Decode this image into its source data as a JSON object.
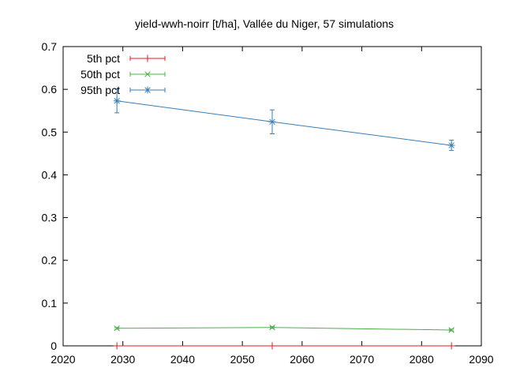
{
  "chart_data": {
    "type": "line",
    "title": "yield-wwh-noirr [t/ha], Vallée du Niger, 57 simulations",
    "xlabel": "",
    "ylabel": "",
    "xlim": [
      2020,
      2090
    ],
    "ylim": [
      0,
      0.7
    ],
    "x_ticks": [
      "2020",
      "2030",
      "2040",
      "2050",
      "2060",
      "2070",
      "2080",
      "2090"
    ],
    "y_ticks": [
      "0",
      "0.1",
      "0.2",
      "0.3",
      "0.4",
      "0.5",
      "0.6",
      "0.7"
    ],
    "grid": false,
    "legend_position": "top-left",
    "x": [
      2029,
      2055,
      2085
    ],
    "series": [
      {
        "name": "5th pct",
        "color": "#e41a1c",
        "marker": "plus",
        "values": [
          0.0,
          0.0,
          0.0
        ],
        "err": [
          0,
          0,
          0
        ]
      },
      {
        "name": "50th pct",
        "color": "#4daf4a",
        "marker": "cross",
        "values": [
          0.041,
          0.043,
          0.037
        ],
        "err": [
          0.002,
          0.002,
          0.002
        ]
      },
      {
        "name": "95th pct",
        "color": "#377eb8",
        "marker": "star",
        "values": [
          0.573,
          0.524,
          0.469
        ],
        "err": [
          0.028,
          0.028,
          0.012
        ]
      }
    ]
  }
}
